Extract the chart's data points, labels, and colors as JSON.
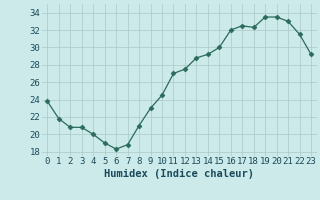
{
  "x": [
    0,
    1,
    2,
    3,
    4,
    5,
    6,
    7,
    8,
    9,
    10,
    11,
    12,
    13,
    14,
    15,
    16,
    17,
    18,
    19,
    20,
    21,
    22,
    23
  ],
  "y": [
    23.8,
    21.8,
    20.8,
    20.8,
    20.0,
    19.0,
    18.3,
    18.8,
    21.0,
    23.0,
    24.5,
    27.0,
    27.5,
    28.8,
    29.2,
    30.0,
    32.0,
    32.5,
    32.3,
    33.5,
    33.5,
    33.0,
    31.5,
    29.2
  ],
  "xlabel": "Humidex (Indice chaleur)",
  "xlim": [
    -0.5,
    23.5
  ],
  "ylim": [
    17.5,
    35.0
  ],
  "yticks": [
    18,
    20,
    22,
    24,
    26,
    28,
    30,
    32,
    34
  ],
  "xticks": [
    0,
    1,
    2,
    3,
    4,
    5,
    6,
    7,
    8,
    9,
    10,
    11,
    12,
    13,
    14,
    15,
    16,
    17,
    18,
    19,
    20,
    21,
    22,
    23
  ],
  "line_color": "#2a6b5a",
  "marker": "D",
  "marker_size": 2.5,
  "bg_color": "#cceaea",
  "grid_color": "#aac8c8",
  "tick_label_color": "#1a4a5a",
  "xlabel_color": "#1a4a5a",
  "xlabel_fontsize": 7.5,
  "tick_fontsize": 6.5
}
